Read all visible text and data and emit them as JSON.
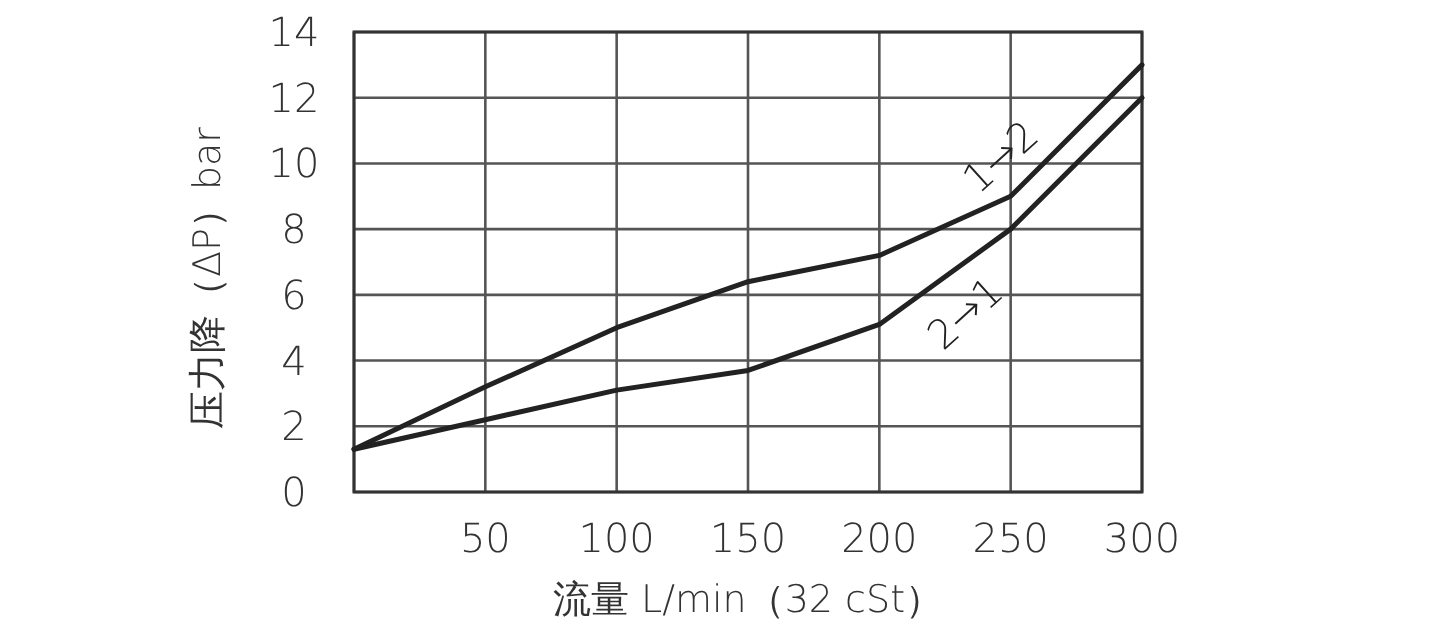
{
  "chart_data": {
    "type": "line",
    "xlabel": "流量 L/min（32 cSt）",
    "ylabel": "压力降（ΔP）bar",
    "x": [
      0,
      50,
      100,
      150,
      200,
      250,
      300
    ],
    "series": [
      {
        "name": "1→2",
        "color": "#222222",
        "values": [
          1.3,
          3.2,
          5.0,
          6.4,
          7.2,
          9.0,
          13.0
        ]
      },
      {
        "name": "2→1",
        "color": "#222222",
        "values": [
          1.3,
          2.2,
          3.1,
          3.7,
          5.1,
          8.0,
          12.0
        ]
      }
    ],
    "xlim": [
      0,
      300
    ],
    "ylim": [
      0,
      14
    ],
    "xticks": [
      {
        "value": 0,
        "label": null
      },
      50,
      100,
      150,
      200,
      250,
      300
    ],
    "yticks": [
      0,
      2,
      4,
      6,
      8,
      10,
      12,
      14
    ],
    "grid": true,
    "marker": "none",
    "line_style": "solid"
  }
}
